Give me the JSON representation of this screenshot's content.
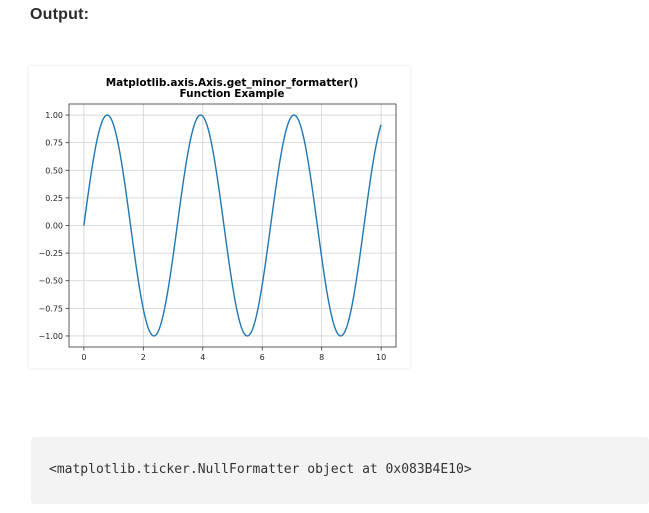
{
  "output": {
    "heading": "Output:"
  },
  "code": {
    "text": "<matplotlib.ticker.NullFormatter object at 0x083B4E10>"
  },
  "chart_data": {
    "type": "line",
    "title_lines": [
      "Matplotlib.axis.Axis.get_minor_formatter()",
      "Function Example"
    ],
    "xlabel": "",
    "ylabel": "",
    "xlim": [
      -0.5,
      10.5
    ],
    "ylim": [
      -1.1,
      1.1
    ],
    "x_ticks": [
      0,
      2,
      4,
      6,
      8,
      10
    ],
    "x_tick_labels": [
      "0",
      "2",
      "4",
      "6",
      "8",
      "10"
    ],
    "y_ticks": [
      1.0,
      0.75,
      0.5,
      0.25,
      0.0,
      -0.25,
      -0.5,
      -0.75,
      -1.0
    ],
    "y_tick_labels": [
      "1.00",
      "0.75",
      "0.50",
      "0.25",
      "0.00",
      "−0.25",
      "−0.50",
      "−0.75",
      "−1.00"
    ],
    "grid": true,
    "legend": "none",
    "series": [
      {
        "function": "sin(2x)",
        "x_range": [
          0,
          10
        ],
        "color": "#1f77b4"
      }
    ]
  }
}
